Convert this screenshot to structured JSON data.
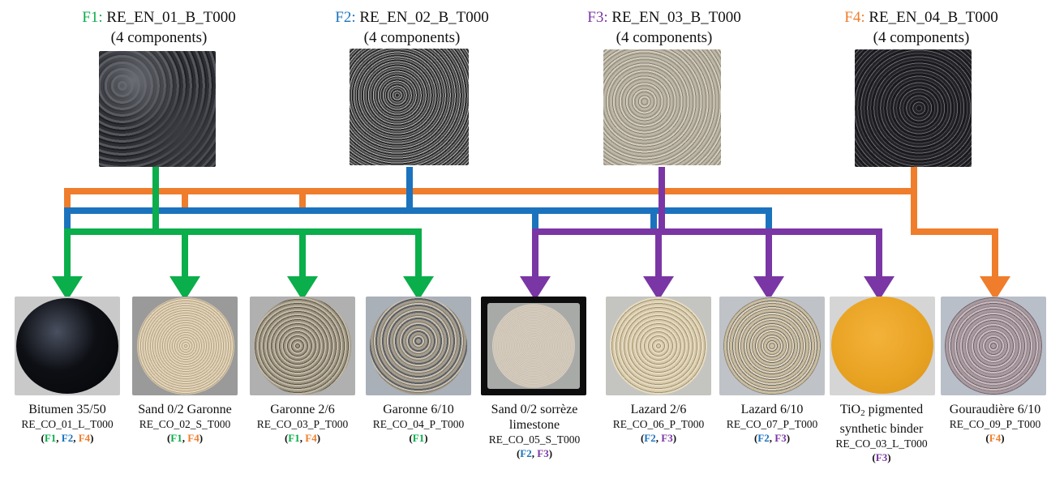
{
  "colors": {
    "F1": "#0aae4a",
    "F2": "#1b73bd",
    "F3": "#7a36a4",
    "F4": "#ef7d2c"
  },
  "formulations": [
    {
      "tag": "F1:",
      "code": "RE_EN_01_B_T000",
      "count": "(4 components)",
      "texture": "dark-asphalt-icon"
    },
    {
      "tag": "F2:",
      "code": "RE_EN_02_B_T000",
      "count": "(4 components)",
      "texture": "speckled-asphalt-icon"
    },
    {
      "tag": "F3:",
      "code": "RE_EN_03_B_T000",
      "count": "(4 components)",
      "texture": "light-concrete-icon"
    },
    {
      "tag": "F4:",
      "code": "RE_EN_04_B_T000",
      "count": "(4 components)",
      "texture": "black-aggregate-icon"
    }
  ],
  "components": [
    {
      "name": "Bitumen 35/50",
      "code": "RE_CO_01_L_T000",
      "used_in": [
        "F1",
        "F2",
        "F4"
      ],
      "texture": "bitumen-icon"
    },
    {
      "name": "Sand 0/2 Garonne",
      "code": "RE_CO_02_S_T000",
      "used_in": [
        "F1",
        "F4"
      ],
      "texture": "sand-icon"
    },
    {
      "name": "Garonne 2/6",
      "code": "RE_CO_03_P_T000",
      "used_in": [
        "F1",
        "F4"
      ],
      "texture": "gravel-icon"
    },
    {
      "name": "Garonne 6/10",
      "code": "RE_CO_04_P_T000",
      "used_in": [
        "F1"
      ],
      "texture": "pebble-icon"
    },
    {
      "name": "Sand 0/2 sorrèze",
      "name2": "limestone",
      "code": "RE_CO_05_S_T000",
      "used_in": [
        "F2",
        "F3"
      ],
      "texture": "limestone-sand-icon"
    },
    {
      "name": "Lazard 2/6",
      "code": "RE_CO_06_P_T000",
      "used_in": [
        "F2",
        "F3"
      ],
      "texture": "fine-gravel-icon"
    },
    {
      "name": "Lazard 6/10",
      "code": "RE_CO_07_P_T000",
      "used_in": [
        "F2",
        "F3"
      ],
      "texture": "coarse-gravel-icon"
    },
    {
      "name_pre": "TiO",
      "name_sub": "2",
      "name_post": " pigmented",
      "name2": "synthetic binder",
      "code": "RE_CO_03_L_T000",
      "used_in": [
        "F3"
      ],
      "texture": "pigmented-binder-icon"
    },
    {
      "name": "Gouraudière 6/10",
      "code": "RE_CO_09_P_T000",
      "used_in": [
        "F4"
      ],
      "texture": "gouraudiere-icon"
    }
  ]
}
